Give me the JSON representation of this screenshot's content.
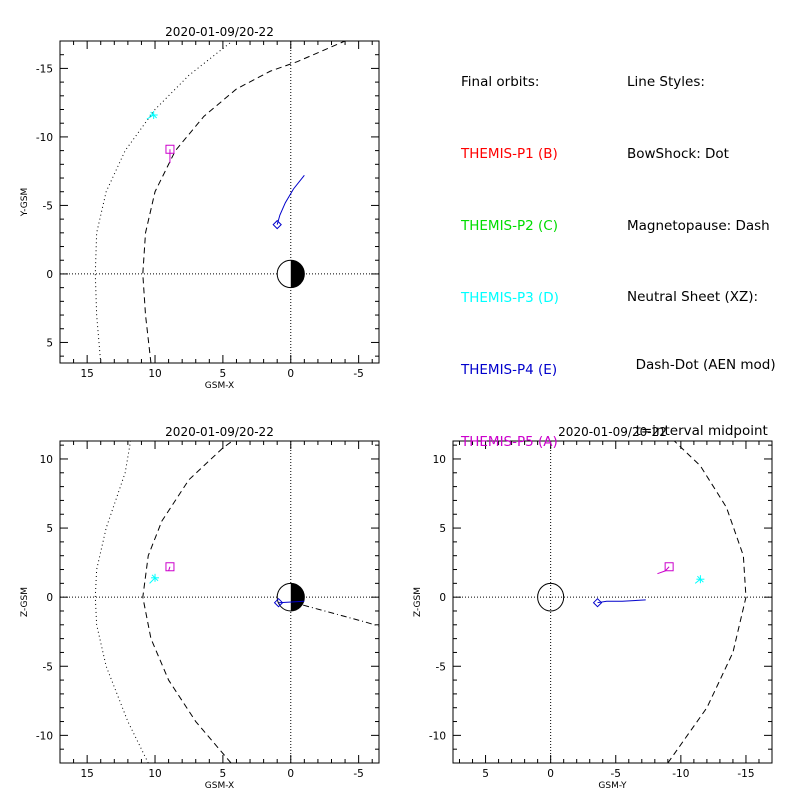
{
  "chart_data": [
    {
      "id": "xy",
      "type": "scatter",
      "title": "2020-01-09/20-22",
      "xlabel": "GSM-X",
      "ylabel": "Y-GSM",
      "xlim": [
        17,
        -6.5
      ],
      "ylim": [
        6.5,
        -17
      ],
      "xticks": [
        15,
        10,
        5,
        0,
        -5
      ],
      "xtick_labels": [
        "15",
        "10",
        "5",
        "0",
        "-5"
      ],
      "yticks": [
        -15,
        -10,
        -5,
        0,
        5
      ],
      "ytick_labels": [
        "-15",
        "-10",
        "-5",
        "0",
        "5"
      ],
      "grid": false,
      "earth": true,
      "axis_lines": {
        "x": 0,
        "y": 0
      },
      "curves": [
        {
          "name": "bowshock",
          "style": "dot",
          "x": [
            14.0,
            14.3,
            14.4,
            14.3,
            13.6,
            12.2,
            10.0,
            7.5,
            4.3
          ],
          "y": [
            6.5,
            3.0,
            0.0,
            -3.0,
            -6.0,
            -9.0,
            -12.0,
            -14.5,
            -17.0
          ]
        },
        {
          "name": "magnetopause",
          "style": "dash",
          "x": [
            10.3,
            10.7,
            10.9,
            10.7,
            10.0,
            8.5,
            6.4,
            4.0,
            1.5,
            -0.5,
            -4.0
          ],
          "y": [
            6.5,
            3.0,
            0.0,
            -3.0,
            -6.0,
            -9.0,
            -11.5,
            -13.5,
            -14.8,
            -15.5,
            -17.0
          ]
        }
      ],
      "series": [
        {
          "name": "THEMIS-P3 (D)",
          "color": "#00ffff",
          "marker": "asterisk",
          "x": [
            10.6,
            10.1
          ],
          "y": [
            -11.3,
            -11.6
          ]
        },
        {
          "name": "THEMIS-P4 (E)",
          "color": "#0000cc",
          "marker": "diamond",
          "x": [
            -1.0,
            -0.2,
            0.4,
            0.8,
            1.0
          ],
          "y": [
            -7.2,
            -6.2,
            -5.2,
            -4.3,
            -3.6
          ]
        },
        {
          "name": "THEMIS-P5 (A)",
          "color": "#cc00cc",
          "marker": "square",
          "x": [
            8.9,
            8.9
          ],
          "y": [
            -8.1,
            -9.1
          ]
        }
      ]
    },
    {
      "id": "xz",
      "type": "scatter",
      "title": "2020-01-09/20-22",
      "xlabel": "GSM-X",
      "ylabel": "Z-GSM",
      "xlim": [
        17,
        -6.5
      ],
      "ylim": [
        -12,
        11.3
      ],
      "xticks": [
        15,
        10,
        5,
        0,
        -5
      ],
      "xtick_labels": [
        "15",
        "10",
        "5",
        "0",
        "-5"
      ],
      "yticks": [
        10,
        5,
        0,
        -5,
        -10
      ],
      "ytick_labels": [
        "10",
        "5",
        "0",
        "-5",
        "-10"
      ],
      "grid": false,
      "earth": true,
      "axis_lines": {
        "x": 0,
        "y": 0
      },
      "curves": [
        {
          "name": "bowshock",
          "style": "dot",
          "x": [
            10.5,
            12.0,
            13.6,
            14.3,
            14.4,
            14.3,
            13.6,
            12.2,
            11.8
          ],
          "y": [
            -12.0,
            -9.0,
            -5.0,
            -2.0,
            0.0,
            2.0,
            5.0,
            9.0,
            11.3
          ]
        },
        {
          "name": "magnetopause",
          "style": "dash",
          "x": [
            4.4,
            7.0,
            9.0,
            10.3,
            10.9,
            10.5,
            9.5,
            7.5,
            5.0,
            4.3
          ],
          "y": [
            -12.0,
            -9.0,
            -6.0,
            -3.0,
            0.0,
            3.0,
            5.5,
            8.5,
            10.8,
            11.3
          ]
        },
        {
          "name": "neutral-sheet",
          "style": "dashdot",
          "x": [
            0.0,
            -1.0,
            -2.5,
            -4.0,
            -5.5,
            -6.5
          ],
          "y": [
            -0.3,
            -0.6,
            -1.0,
            -1.4,
            -1.8,
            -2.1
          ]
        }
      ],
      "series": [
        {
          "name": "THEMIS-P3 (D)",
          "color": "#00ffff",
          "marker": "asterisk",
          "x": [
            10.4,
            10.0
          ],
          "y": [
            1.0,
            1.4
          ]
        },
        {
          "name": "THEMIS-P4 (E)",
          "color": "#0000cc",
          "marker": "diamond",
          "x": [
            -1.0,
            0.9
          ],
          "y": [
            -0.3,
            -0.4
          ]
        },
        {
          "name": "THEMIS-P5 (A)",
          "color": "#cc00cc",
          "marker": "square",
          "x": [
            9.0,
            8.9
          ],
          "y": [
            1.9,
            2.2
          ]
        }
      ]
    },
    {
      "id": "yz",
      "type": "scatter",
      "title": "2020-01-09/20-22",
      "xlabel": "GSM-Y",
      "ylabel": "Z-GSM",
      "xlim": [
        7.5,
        -17
      ],
      "ylim": [
        -12,
        11.3
      ],
      "xticks": [
        5,
        0,
        -5,
        -10,
        -15
      ],
      "xtick_labels": [
        "5",
        "0",
        "-5",
        "-10",
        "-15"
      ],
      "yticks": [
        10,
        5,
        0,
        -5,
        -10
      ],
      "ytick_labels": [
        "10",
        "5",
        "0",
        "-5",
        "-10"
      ],
      "grid": false,
      "earth": false,
      "earth_outline": true,
      "axis_lines": {
        "x": 0,
        "y": 0
      },
      "curves": [
        {
          "name": "magnetopause",
          "style": "dash",
          "x": [
            -9.0,
            -12.0,
            -14.0,
            -15.0,
            -14.8,
            -13.5,
            -11.5,
            -9.5
          ],
          "y": [
            -12.0,
            -8.0,
            -4.0,
            0.0,
            3.0,
            6.5,
            9.5,
            11.3
          ]
        }
      ],
      "series": [
        {
          "name": "THEMIS-P3 (D)",
          "color": "#00ffff",
          "marker": "asterisk",
          "x": [
            -11.1,
            -11.5
          ],
          "y": [
            1.0,
            1.3
          ]
        },
        {
          "name": "THEMIS-P4 (E)",
          "color": "#0000cc",
          "marker": "diamond",
          "x": [
            -7.3,
            -5.5,
            -4.3,
            -3.6
          ],
          "y": [
            -0.2,
            -0.3,
            -0.3,
            -0.4
          ]
        },
        {
          "name": "THEMIS-P5 (A)",
          "color": "#cc00cc",
          "marker": "square",
          "x": [
            -8.2,
            -8.8,
            -9.1
          ],
          "y": [
            1.7,
            1.9,
            2.2
          ]
        }
      ]
    }
  ],
  "legend": {
    "orbits_title": "Final orbits:",
    "orbits": [
      {
        "label": "THEMIS-P1 (B)",
        "color": "#ff0000"
      },
      {
        "label": "THEMIS-P2 (C)",
        "color": "#00dd00"
      },
      {
        "label": "THEMIS-P3 (D)",
        "color": "#00ffff"
      },
      {
        "label": "THEMIS-P4 (E)",
        "color": "#0000cc"
      },
      {
        "label": "THEMIS-P5 (A)",
        "color": "#cc00cc"
      }
    ],
    "styles_title": "Line Styles:",
    "styles": [
      "BowShock: Dot",
      "Magnetopause: Dash",
      "Neutral Sheet (XZ):",
      "  Dash-Dot (AEN mod)",
      "  t=interval midpoint"
    ]
  }
}
